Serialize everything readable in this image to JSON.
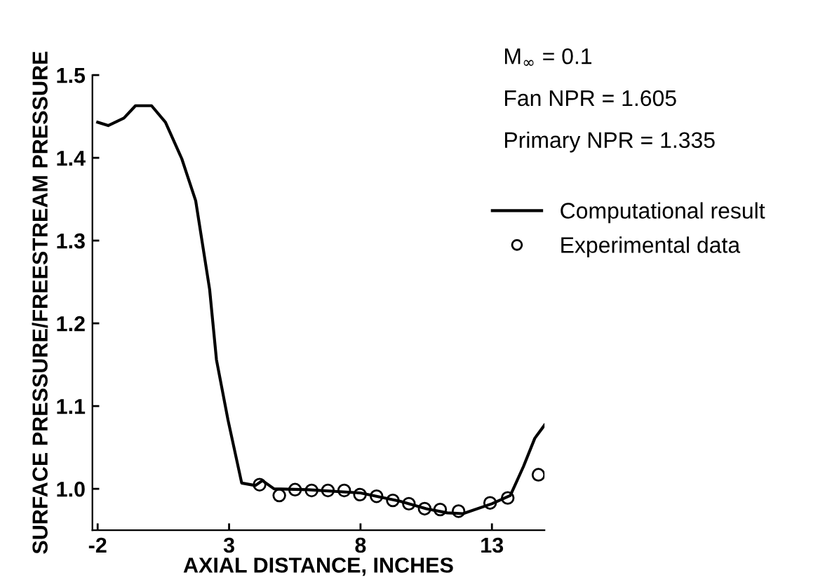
{
  "chart_data": {
    "type": "line",
    "xlabel": "AXIAL DISTANCE, INCHES",
    "ylabel": "SURFACE PRESSURE/FREESTREAM PRESSURE",
    "xlim": [
      -2.2,
      15
    ],
    "ylim": [
      0.95,
      1.5
    ],
    "xticks": [
      -2,
      3,
      8,
      13
    ],
    "yticks": [
      {
        "value": 1.0,
        "label": "1.0"
      },
      {
        "value": 1.1,
        "label": "1.1"
      },
      {
        "value": 1.2,
        "label": "1.2"
      },
      {
        "value": 1.3,
        "label": "1.3"
      },
      {
        "value": 1.4,
        "label": "1.4"
      },
      {
        "value": 1.5,
        "label": "1.5"
      }
    ],
    "grid": false,
    "legend": "right",
    "annotations": [
      "M$_{∞}$ = 0.1",
      "Fan NPR = 1.605",
      "Primary NPR = 1.335"
    ],
    "series": [
      {
        "name": "Computational result",
        "color": "#000000",
        "marker": "none",
        "line_style": "solid",
        "x": [
          -2.0,
          -1.6,
          -1.0,
          -0.56,
          0.05,
          0.58,
          1.2,
          1.73,
          2.26,
          2.52,
          2.96,
          3.48,
          4.0,
          4.27,
          4.71,
          6.0,
          8.0,
          9.5,
          10.5,
          11.3,
          11.9,
          13.0,
          13.7,
          14.2,
          14.63,
          15.0
        ],
        "values": [
          1.443,
          1.439,
          1.448,
          1.463,
          1.463,
          1.443,
          1.399,
          1.348,
          1.241,
          1.156,
          1.083,
          1.007,
          1.004,
          1.01,
          1.0,
          0.999,
          0.995,
          0.985,
          0.976,
          0.971,
          0.97,
          0.982,
          0.992,
          1.027,
          1.061,
          1.077
        ]
      },
      {
        "name": "Experimental data",
        "type": "scatter",
        "color": "#000000",
        "marker": "circle",
        "x": [
          4.16,
          4.91,
          5.51,
          6.14,
          6.76,
          7.38,
          7.98,
          8.61,
          9.23,
          9.84,
          10.44,
          11.03,
          11.73,
          12.93,
          13.6,
          14.77
        ],
        "values": [
          1.005,
          0.992,
          0.999,
          0.998,
          0.998,
          0.998,
          0.993,
          0.991,
          0.986,
          0.982,
          0.976,
          0.975,
          0.973,
          0.983,
          0.989,
          1.017
        ]
      }
    ]
  }
}
